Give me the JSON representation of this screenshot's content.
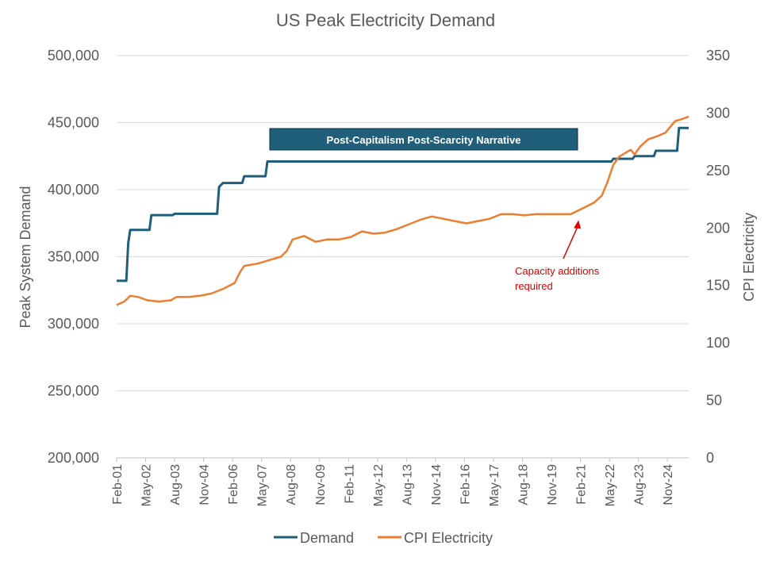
{
  "chart_data": {
    "type": "line",
    "title": "US Peak Electricity Demand",
    "ylabel": "Peak System Demand",
    "y2label": "CPI Electricity",
    "ylim": [
      200000,
      500000
    ],
    "y2lim": [
      0,
      350
    ],
    "yticks": [
      "200,000",
      "250,000",
      "300,000",
      "350,000",
      "400,000",
      "450,000",
      "500,000"
    ],
    "y2ticks": [
      "0",
      "50",
      "100",
      "150",
      "200",
      "250",
      "300",
      "350"
    ],
    "xticks": [
      "Feb-01",
      "May-02",
      "Aug-03",
      "Nov-04",
      "Feb-06",
      "May-07",
      "Aug-08",
      "Nov-09",
      "Feb-11",
      "May-12",
      "Aug-13",
      "Nov-14",
      "Feb-16",
      "May-17",
      "Aug-18",
      "Nov-19",
      "Feb-21",
      "May-22",
      "Aug-23",
      "Nov-24"
    ],
    "grid": true,
    "legend": "bottom",
    "series": [
      {
        "name": "Demand",
        "axis": "left",
        "color": "#1f5f7a",
        "points": [
          [
            "2001-02",
            332000
          ],
          [
            "2001-07",
            332000
          ],
          [
            "2001-08",
            360000
          ],
          [
            "2001-09",
            370000
          ],
          [
            "2002-07",
            370000
          ],
          [
            "2002-08",
            381000
          ],
          [
            "2003-07",
            381000
          ],
          [
            "2003-08",
            382000
          ],
          [
            "2005-06",
            382000
          ],
          [
            "2005-07",
            402000
          ],
          [
            "2005-09",
            405000
          ],
          [
            "2006-07",
            405000
          ],
          [
            "2006-08",
            410000
          ],
          [
            "2007-07",
            410000
          ],
          [
            "2007-08",
            421000
          ],
          [
            "2022-06",
            421000
          ],
          [
            "2022-07",
            423000
          ],
          [
            "2023-05",
            423000
          ],
          [
            "2023-06",
            425000
          ],
          [
            "2024-04",
            425000
          ],
          [
            "2024-05",
            429000
          ],
          [
            "2025-04",
            429000
          ],
          [
            "2025-05",
            446000
          ],
          [
            "2025-10",
            446000
          ]
        ]
      },
      {
        "name": "CPI Electricity",
        "axis": "right",
        "color": "#ed7d31",
        "points": [
          [
            "2001-02",
            133
          ],
          [
            "2001-06",
            136
          ],
          [
            "2001-09",
            141
          ],
          [
            "2002-01",
            140
          ],
          [
            "2002-06",
            137
          ],
          [
            "2002-12",
            136
          ],
          [
            "2003-06",
            137
          ],
          [
            "2003-09",
            140
          ],
          [
            "2004-03",
            140
          ],
          [
            "2004-09",
            141
          ],
          [
            "2005-03",
            143
          ],
          [
            "2005-09",
            147
          ],
          [
            "2006-03",
            152
          ],
          [
            "2006-06",
            162
          ],
          [
            "2006-08",
            167
          ],
          [
            "2007-03",
            169
          ],
          [
            "2007-09",
            172
          ],
          [
            "2008-03",
            175
          ],
          [
            "2008-06",
            180
          ],
          [
            "2008-09",
            190
          ],
          [
            "2009-03",
            193
          ],
          [
            "2009-09",
            188
          ],
          [
            "2010-03",
            190
          ],
          [
            "2010-09",
            190
          ],
          [
            "2011-03",
            192
          ],
          [
            "2011-09",
            197
          ],
          [
            "2012-03",
            195
          ],
          [
            "2012-09",
            196
          ],
          [
            "2013-03",
            199
          ],
          [
            "2013-09",
            203
          ],
          [
            "2014-03",
            207
          ],
          [
            "2014-09",
            210
          ],
          [
            "2015-03",
            208
          ],
          [
            "2015-09",
            206
          ],
          [
            "2016-03",
            204
          ],
          [
            "2016-09",
            206
          ],
          [
            "2017-03",
            208
          ],
          [
            "2017-09",
            212
          ],
          [
            "2018-03",
            212
          ],
          [
            "2018-09",
            211
          ],
          [
            "2019-03",
            212
          ],
          [
            "2019-09",
            212
          ],
          [
            "2020-03",
            212
          ],
          [
            "2020-09",
            212
          ],
          [
            "2021-03",
            217
          ],
          [
            "2021-09",
            222
          ],
          [
            "2022-01",
            228
          ],
          [
            "2022-04",
            240
          ],
          [
            "2022-07",
            255
          ],
          [
            "2022-10",
            262
          ],
          [
            "2023-01",
            265
          ],
          [
            "2023-04",
            268
          ],
          [
            "2023-06",
            264
          ],
          [
            "2023-09",
            271
          ],
          [
            "2024-01",
            277
          ],
          [
            "2024-06",
            280
          ],
          [
            "2024-10",
            283
          ],
          [
            "2025-03",
            293
          ],
          [
            "2025-07",
            295
          ],
          [
            "2025-10",
            297
          ]
        ]
      }
    ],
    "annotations": {
      "box": "Post-Capitalism Post-Scarcity Narrative",
      "box_color": "#1f5f7a",
      "note_lines": [
        "Capacity additions",
        "required"
      ],
      "note_color": "#e00000",
      "note_arrow_to": [
        "2021-01",
        211
      ]
    }
  }
}
